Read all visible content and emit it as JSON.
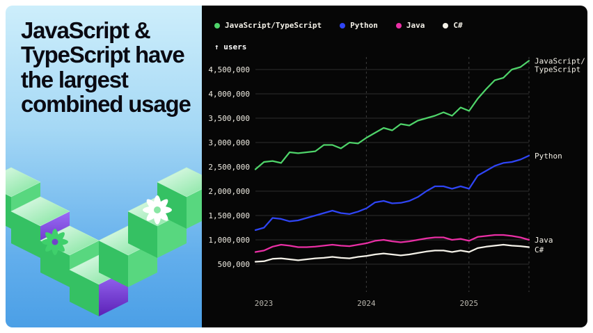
{
  "left_panel": {
    "headline": "JavaScript & TypeScript have the largest combined usage"
  },
  "chart": {
    "axis_note": "↑ users",
    "y_tick_labels": [
      "4,500,000",
      "4,000,000",
      "3,500,000",
      "3,000,000",
      "2,500,000",
      "2,000,000",
      "1,500,000",
      "1,000,000",
      "500,000"
    ],
    "x_tick_labels": [
      "2023",
      "2024",
      "2025"
    ],
    "colors": {
      "background": "#060606",
      "gridline": "#2d2d2d",
      "year_dash": "#3e3e3e",
      "tick_text": "#efece3",
      "year_text": "#b9b6ae"
    }
  },
  "chart_data": {
    "type": "line",
    "title": "",
    "xlabel": "",
    "ylabel": "users",
    "x_start": "2023-01",
    "x_interval": "monthly",
    "n_points": 33,
    "x_tick_labels": [
      "2023",
      "2024",
      "2025"
    ],
    "x_tick_month_indices": [
      0,
      12,
      24
    ],
    "y_ticks": [
      500000,
      1000000,
      1500000,
      2000000,
      2500000,
      3000000,
      3500000,
      4000000,
      4500000
    ],
    "ylim": [
      350000,
      4750000
    ],
    "grid": "horizontal",
    "legend_position": "top-left",
    "series": [
      {
        "name": "JavaScript/TypeScript",
        "color": "#4fd46a",
        "end_label_lines": [
          "JavaScript/",
          "TypeScript"
        ],
        "values": [
          2450000,
          2600000,
          2620000,
          2580000,
          2800000,
          2780000,
          2800000,
          2820000,
          2950000,
          2950000,
          2880000,
          3000000,
          2980000,
          3100000,
          3200000,
          3300000,
          3250000,
          3380000,
          3350000,
          3450000,
          3500000,
          3550000,
          3620000,
          3550000,
          3720000,
          3650000,
          3900000,
          4100000,
          4280000,
          4330000,
          4500000,
          4550000,
          4680000
        ]
      },
      {
        "name": "Python",
        "color": "#2f45f5",
        "end_label_lines": [
          "Python"
        ],
        "values": [
          1200000,
          1250000,
          1450000,
          1430000,
          1380000,
          1400000,
          1450000,
          1500000,
          1550000,
          1600000,
          1550000,
          1530000,
          1580000,
          1650000,
          1770000,
          1800000,
          1750000,
          1760000,
          1800000,
          1880000,
          2000000,
          2100000,
          2100000,
          2050000,
          2100000,
          2050000,
          2320000,
          2420000,
          2520000,
          2580000,
          2600000,
          2650000,
          2730000
        ]
      },
      {
        "name": "Java",
        "color": "#ea2fa5",
        "end_label_lines": [
          "Java"
        ],
        "values": [
          750000,
          780000,
          860000,
          900000,
          880000,
          850000,
          850000,
          860000,
          880000,
          900000,
          880000,
          870000,
          900000,
          930000,
          980000,
          1000000,
          970000,
          950000,
          970000,
          1000000,
          1030000,
          1050000,
          1050000,
          1000000,
          1020000,
          980000,
          1060000,
          1080000,
          1100000,
          1100000,
          1080000,
          1050000,
          1000000
        ]
      },
      {
        "name": "C#",
        "color": "#f5f2e9",
        "end_label_lines": [
          "C#"
        ],
        "values": [
          550000,
          560000,
          610000,
          620000,
          600000,
          580000,
          600000,
          620000,
          630000,
          650000,
          630000,
          620000,
          650000,
          670000,
          700000,
          720000,
          700000,
          680000,
          700000,
          730000,
          760000,
          780000,
          780000,
          750000,
          780000,
          750000,
          830000,
          860000,
          880000,
          900000,
          880000,
          870000,
          850000
        ]
      }
    ]
  }
}
